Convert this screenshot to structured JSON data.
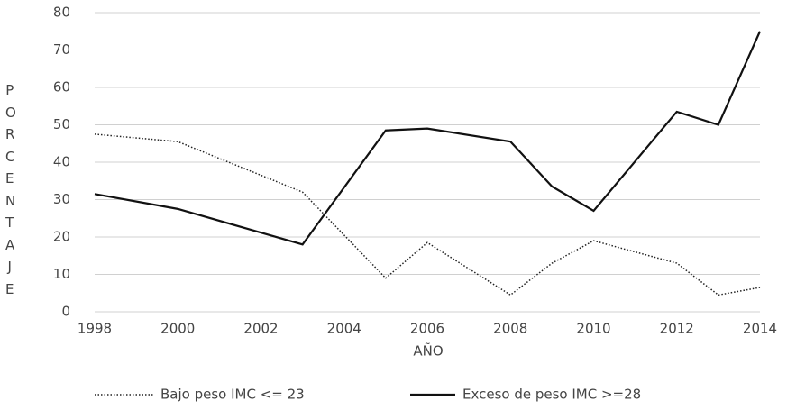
{
  "chart_data": {
    "type": "line",
    "x": [
      1998,
      2000,
      2003,
      2005,
      2006,
      2008,
      2009,
      2010,
      2012,
      2013,
      2014
    ],
    "series": [
      {
        "name": "Bajo peso IMC <= 23",
        "color": "#222222",
        "dash": "dotted",
        "values": [
          47.5,
          45.5,
          32,
          9,
          18.5,
          4.5,
          13,
          19,
          13,
          4.5,
          6.5
        ]
      },
      {
        "name": "Exceso de peso IMC >=28",
        "color": "#111111",
        "dash": "solid",
        "values": [
          31.5,
          27.5,
          18,
          48.5,
          49,
          45.5,
          33.5,
          27,
          53.5,
          50,
          75
        ]
      }
    ],
    "xlabel": "AÑO",
    "ylabel": "PORCENTAJE",
    "xlim": [
      1998,
      2014
    ],
    "xticks": [
      1998,
      2000,
      2002,
      2004,
      2006,
      2008,
      2010,
      2012,
      2014
    ],
    "ylim": [
      0,
      80
    ],
    "yticks": [
      0,
      10,
      20,
      30,
      40,
      50,
      60,
      70,
      80
    ],
    "grid": true,
    "legend": "bottom"
  }
}
